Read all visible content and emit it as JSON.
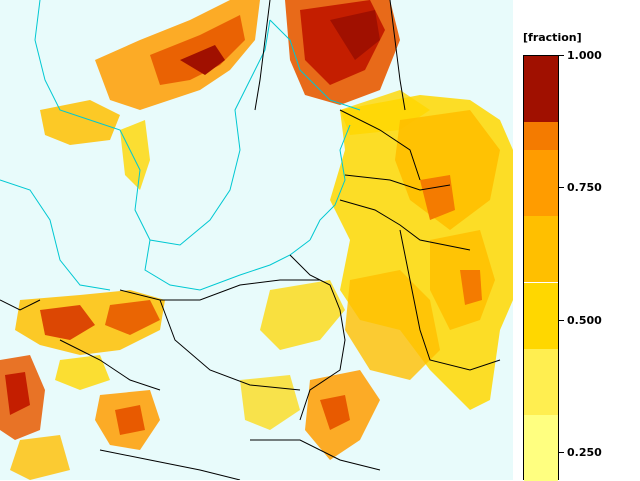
{
  "legend": {
    "unit": "[fraction]",
    "ticks": [
      {
        "value": 1.0,
        "label": "1.000"
      },
      {
        "value": 0.75,
        "label": "0.750"
      },
      {
        "value": 0.5,
        "label": "0.500"
      },
      {
        "value": 0.25,
        "label": "0.250"
      }
    ],
    "color_steps": [
      "#ffff80",
      "#ffee50",
      "#ffd700",
      "#ffbf00",
      "#ff9c00",
      "#f47b00",
      "#e85a00",
      "#d83800",
      "#c41e00",
      "#a01000"
    ]
  },
  "colors": {
    "sea": "#e8fbfb",
    "coast": "#00c8d2",
    "border": "#000000"
  }
}
